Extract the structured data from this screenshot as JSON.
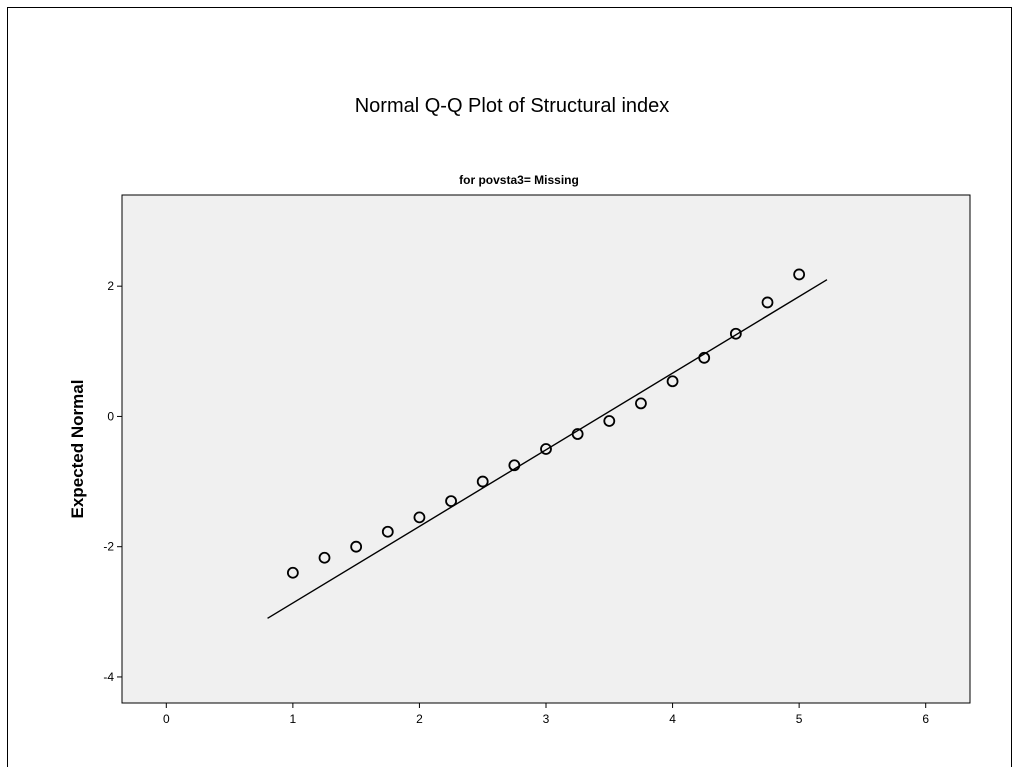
{
  "chart_data": {
    "type": "scatter",
    "title": "Normal Q-Q Plot of Structural index",
    "subtitle": "for povsta3= Missing",
    "xlabel": "",
    "ylabel": "Expected Normal",
    "xlim": [
      -0.35,
      6.35
    ],
    "ylim": [
      -4.4,
      3.4
    ],
    "x_ticks": [
      0,
      1,
      2,
      3,
      4,
      5,
      6
    ],
    "y_ticks": [
      -4,
      -2,
      0,
      2
    ],
    "grid": false,
    "points": [
      {
        "x": 1.0,
        "y": -2.4
      },
      {
        "x": 1.25,
        "y": -2.17
      },
      {
        "x": 1.5,
        "y": -2.0
      },
      {
        "x": 1.75,
        "y": -1.77
      },
      {
        "x": 2.0,
        "y": -1.55
      },
      {
        "x": 2.25,
        "y": -1.3
      },
      {
        "x": 2.5,
        "y": -1.0
      },
      {
        "x": 2.75,
        "y": -0.75
      },
      {
        "x": 3.0,
        "y": -0.5
      },
      {
        "x": 3.25,
        "y": -0.27
      },
      {
        "x": 3.5,
        "y": -0.07
      },
      {
        "x": 3.75,
        "y": 0.2
      },
      {
        "x": 4.0,
        "y": 0.54
      },
      {
        "x": 4.25,
        "y": 0.9
      },
      {
        "x": 4.5,
        "y": 1.27
      },
      {
        "x": 4.75,
        "y": 1.75
      },
      {
        "x": 5.0,
        "y": 2.18
      }
    ],
    "reference_line": {
      "x1": 0.8,
      "y1": -3.1,
      "x2": 5.22,
      "y2": 2.1
    },
    "colors": {
      "plot_background": "#f0f0f0",
      "marker": "#000000",
      "line": "#000000"
    }
  }
}
